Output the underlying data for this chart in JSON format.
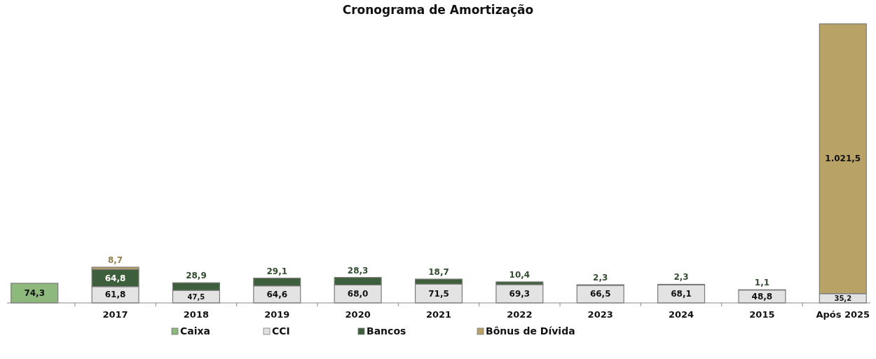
{
  "chart_data": {
    "type": "bar",
    "title": "Cronograma de Amortização",
    "stacked": true,
    "legend": "bottom",
    "categories": [
      null,
      "2017",
      "2018",
      "2019",
      "2020",
      "2021",
      "2022",
      "2023",
      "2024",
      "2015",
      "Após 2025"
    ],
    "series": [
      {
        "name": "Caixa",
        "color": "#8dba7c",
        "values": [
          74.3,
          null,
          null,
          null,
          null,
          null,
          null,
          null,
          null,
          null,
          null
        ],
        "value_labels": [
          "74,3",
          null,
          null,
          null,
          null,
          null,
          null,
          null,
          null,
          null,
          null
        ]
      },
      {
        "name": "CCI",
        "color": "#e3e3e3",
        "values": [
          null,
          61.8,
          47.5,
          64.6,
          68.0,
          71.5,
          69.3,
          66.5,
          68.1,
          48.8,
          35.2
        ],
        "value_labels": [
          null,
          "61,8",
          "47,5",
          "64,6",
          "68,0",
          "71,5",
          "69,3",
          "66,5",
          "68,1",
          "48,8",
          "35,2"
        ]
      },
      {
        "name": "Bancos",
        "color": "#3e5f3b",
        "values": [
          null,
          64.8,
          28.9,
          29.1,
          28.3,
          18.7,
          10.4,
          2.3,
          2.3,
          1.1,
          null
        ],
        "value_labels": [
          null,
          "64,8",
          "28,9",
          "29,1",
          "28,3",
          "18,7",
          "10,4",
          "2,3",
          "2,3",
          "1,1",
          null
        ]
      },
      {
        "name": "Bônus de Dívida",
        "color": "#b9a266",
        "values": [
          null,
          8.7,
          null,
          null,
          null,
          null,
          null,
          null,
          null,
          null,
          1021.5
        ],
        "value_labels": [
          null,
          "8,7",
          null,
          null,
          null,
          null,
          null,
          null,
          null,
          null,
          "1.021,5"
        ]
      }
    ]
  }
}
